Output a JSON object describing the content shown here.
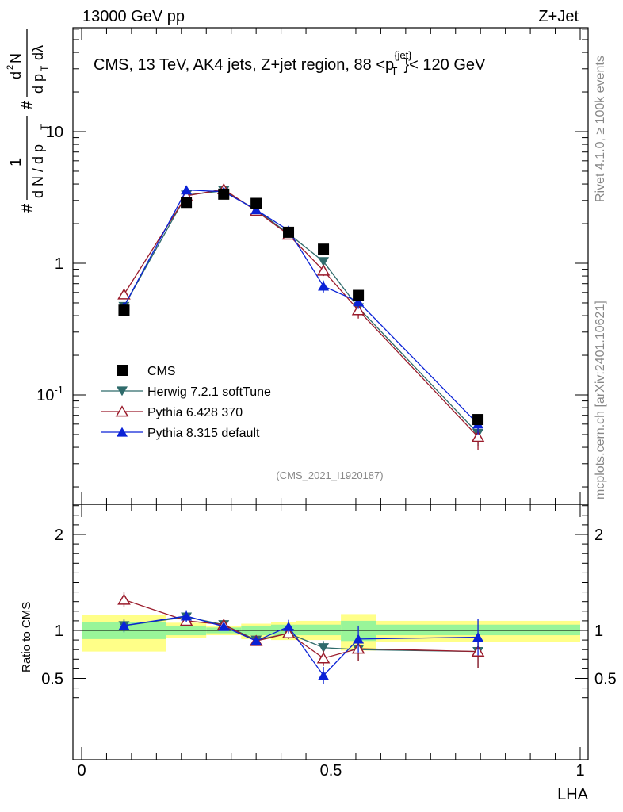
{
  "header": {
    "left": "13000 GeV pp",
    "right": "Z+Jet"
  },
  "side_labels": {
    "rivet": "Rivet 4.1.0, ≥ 100k events",
    "mcplots": "mcplots.cern.ch [arXiv:2401.10621]"
  },
  "colors": {
    "cms": "#000000",
    "herwig": "#2f6b6b",
    "pythia6": "#9a1b2b",
    "pythia8": "#0a22d6",
    "band_green": "#99f599",
    "band_yellow": "#ffff88"
  },
  "chart_data": [
    {
      "type": "scatter",
      "title": "CMS, 13 TeV, AK4 jets, Z+jet region, 88 <p_T^{jet}< 120 GeV",
      "watermark": "(CMS_2021_I1920187)",
      "ylabel": "1/(dN/dp_T) d²N/(dp_T dλ)",
      "yscale": "log",
      "ylim": [
        0.02,
        60
      ],
      "xlim": [
        0,
        1
      ],
      "ytick_labels": [
        "10^{-1}",
        "1",
        "10"
      ],
      "legend_position": "center-left",
      "series": [
        {
          "name": "CMS",
          "key": "cms",
          "marker": "square",
          "x": [
            0.085,
            0.21,
            0.285,
            0.35,
            0.415,
            0.485,
            0.555,
            0.795
          ],
          "y": [
            0.44,
            2.9,
            3.35,
            2.85,
            1.72,
            1.28,
            0.57,
            0.065
          ]
        },
        {
          "name": "Herwig 7.2.1 softTune",
          "key": "herwig",
          "marker": "triangle-down",
          "x": [
            0.085,
            0.21,
            0.285,
            0.35,
            0.415,
            0.485,
            0.555,
            0.795
          ],
          "y": [
            0.47,
            3.3,
            3.55,
            2.55,
            1.68,
            1.03,
            0.46,
            0.051
          ],
          "yerr": [
            0.03,
            0.15,
            0.15,
            0.12,
            0.08,
            0.08,
            0.06,
            0.01
          ]
        },
        {
          "name": "Pythia 6.428 370",
          "key": "pythia6",
          "marker": "triangle-open",
          "x": [
            0.085,
            0.21,
            0.285,
            0.35,
            0.415,
            0.485,
            0.555,
            0.795
          ],
          "y": [
            0.58,
            3.25,
            3.65,
            2.5,
            1.65,
            0.88,
            0.44,
            0.048
          ],
          "yerr": [
            0.04,
            0.15,
            0.15,
            0.12,
            0.1,
            0.08,
            0.06,
            0.01
          ]
        },
        {
          "name": "Pythia 8.315 default",
          "key": "pythia8",
          "marker": "triangle-up",
          "x": [
            0.085,
            0.21,
            0.285,
            0.35,
            0.415,
            0.485,
            0.555,
            0.795
          ],
          "y": [
            0.47,
            3.6,
            3.5,
            2.55,
            1.78,
            0.67,
            0.51,
            0.06
          ],
          "yerr": [
            0.03,
            0.15,
            0.15,
            0.12,
            0.1,
            0.07,
            0.06,
            0.01
          ]
        }
      ]
    },
    {
      "type": "scatter",
      "title": "",
      "xlabel": "LHA",
      "ylabel": "Ratio to CMS",
      "xlim": [
        0,
        1
      ],
      "ylim": [
        0.3,
        2.3
      ],
      "reference_line": 1,
      "xtick_labels": [
        "0",
        "0.5",
        "1"
      ],
      "ytick_labels": [
        "0.5",
        "1",
        "2"
      ],
      "uncertainty_bands": {
        "edges": [
          0,
          0.17,
          0.25,
          0.32,
          0.38,
          0.43,
          0.52,
          0.59,
          1.0
        ],
        "green_low": [
          0.91,
          0.95,
          0.97,
          0.95,
          0.95,
          0.95,
          0.89,
          0.95
        ],
        "green_high": [
          1.09,
          1.05,
          1.03,
          1.05,
          1.06,
          1.06,
          1.1,
          1.06
        ],
        "yellow_low": [
          0.78,
          0.92,
          0.95,
          0.91,
          0.9,
          0.9,
          0.79,
          0.88
        ],
        "yellow_high": [
          1.16,
          1.08,
          1.05,
          1.07,
          1.09,
          1.1,
          1.17,
          1.1
        ]
      },
      "series": [
        {
          "name": "Herwig 7.2.1 softTune",
          "key": "herwig",
          "marker": "triangle-down",
          "x": [
            0.085,
            0.21,
            0.285,
            0.35,
            0.415,
            0.485,
            0.555,
            0.795
          ],
          "y": [
            1.05,
            1.14,
            1.06,
            0.9,
            0.97,
            0.82,
            0.8,
            0.78
          ],
          "yerr": [
            0.06,
            0.05,
            0.04,
            0.05,
            0.06,
            0.07,
            0.12,
            0.17
          ]
        },
        {
          "name": "Pythia 6.428 370",
          "key": "pythia6",
          "marker": "triangle-open",
          "x": [
            0.085,
            0.21,
            0.285,
            0.35,
            0.415,
            0.485,
            0.555,
            0.795
          ],
          "y": [
            1.32,
            1.1,
            1.06,
            0.89,
            0.97,
            0.71,
            0.81,
            0.78
          ],
          "yerr": [
            0.08,
            0.05,
            0.05,
            0.05,
            0.06,
            0.08,
            0.13,
            0.17
          ]
        },
        {
          "name": "Pythia 8.315 default",
          "key": "pythia8",
          "marker": "triangle-up",
          "x": [
            0.085,
            0.21,
            0.285,
            0.35,
            0.415,
            0.485,
            0.555,
            0.795
          ],
          "y": [
            1.05,
            1.15,
            1.04,
            0.89,
            1.04,
            0.53,
            0.91,
            0.93
          ],
          "yerr": [
            0.07,
            0.06,
            0.04,
            0.05,
            0.07,
            0.09,
            0.14,
            0.19
          ]
        }
      ]
    }
  ]
}
